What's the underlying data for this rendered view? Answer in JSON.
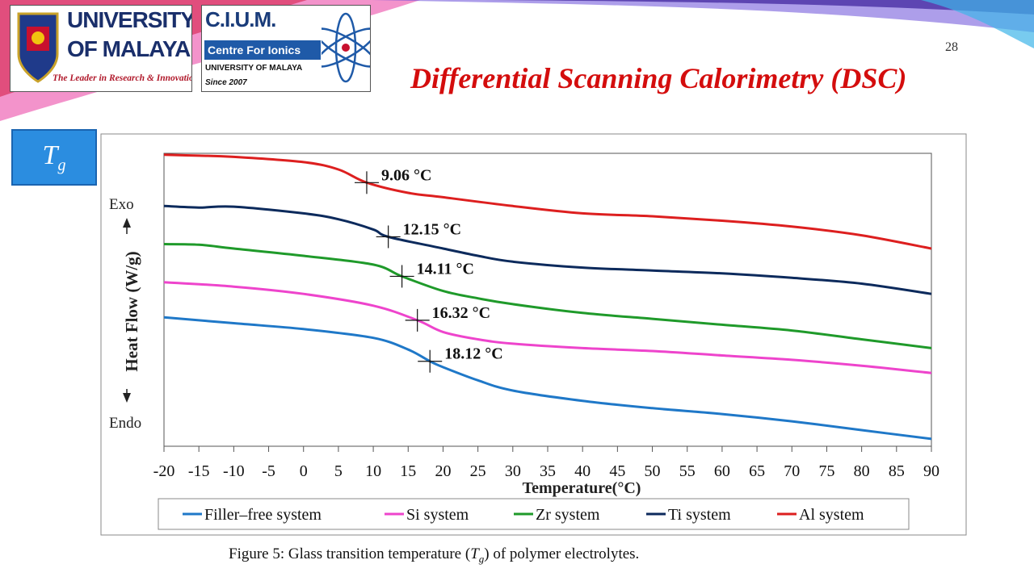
{
  "header": {
    "logo_um": {
      "line1": "UNIVERSITY",
      "line2": "OF MALAYA",
      "tagline": "The Leader in Research & Innovation"
    },
    "logo_cium": {
      "title": "C.I.U.M.",
      "subtitle": "Centre For Ionics",
      "line3": "UNIVERSITY OF MALAYA",
      "line4": "Since 2007"
    },
    "page_number": "28",
    "title": "Differential Scanning Calorimetry (DSC)"
  },
  "tg_badge": {
    "main": "T",
    "sub": "g"
  },
  "chart_data": {
    "type": "line",
    "xlabel": "Temperature(°C)",
    "ylabel": "Heat Flow (W/g)",
    "y_top_label": "Exo",
    "y_bottom_label": "Endo",
    "xlim": [
      -20,
      90
    ],
    "xticks": [
      -20,
      -15,
      -10,
      -5,
      0,
      5,
      10,
      15,
      20,
      25,
      30,
      35,
      40,
      45,
      50,
      55,
      60,
      65,
      70,
      75,
      80,
      85,
      90
    ],
    "ylim": [
      0,
      100
    ],
    "grid": false,
    "legend_position": "bottom",
    "colors": {
      "Filler–free system": "#1f78c8",
      "Si system": "#ee44cc",
      "Zr system": "#1f9a2a",
      "Ti system": "#0c2a5c",
      "Al system": "#dd1f1f"
    },
    "series": [
      {
        "name": "Filler–free system",
        "x": [
          -20,
          -10,
          0,
          10,
          15,
          18.12,
          20,
          25,
          30,
          40,
          50,
          60,
          70,
          80,
          90
        ],
        "y": [
          44,
          42,
          40,
          37,
          33,
          29,
          27,
          22.5,
          19,
          15.5,
          13,
          11,
          8.5,
          5.5,
          2.5
        ]
      },
      {
        "name": "Si system",
        "x": [
          -20,
          -10,
          0,
          10,
          16.32,
          20,
          25,
          30,
          40,
          50,
          60,
          70,
          80,
          90
        ],
        "y": [
          56,
          54.5,
          52,
          48,
          43,
          39,
          36.5,
          35,
          33.5,
          32.5,
          31,
          29.5,
          27.5,
          25
        ]
      },
      {
        "name": "Zr system",
        "x": [
          -20,
          -15,
          -10,
          0,
          10,
          14.11,
          20,
          25,
          30,
          40,
          50,
          60,
          70,
          80,
          90
        ],
        "y": [
          69,
          68.8,
          67.5,
          65,
          62,
          58,
          53,
          50.5,
          48.5,
          45.5,
          43.5,
          41.5,
          39.5,
          36.5,
          33.5
        ]
      },
      {
        "name": "Ti system",
        "x": [
          -20,
          -15,
          -10,
          0,
          5,
          10,
          12.15,
          20,
          25,
          30,
          40,
          50,
          60,
          70,
          80,
          90
        ],
        "y": [
          82,
          81.5,
          81.8,
          79.5,
          77.5,
          74,
          71.5,
          67.5,
          65,
          63,
          61,
          60,
          59,
          57.5,
          55.5,
          52
        ]
      },
      {
        "name": "Al system",
        "x": [
          -20,
          -15,
          -10,
          0,
          5,
          9.06,
          15,
          20,
          30,
          40,
          50,
          60,
          70,
          80,
          90
        ],
        "y": [
          99.5,
          99.2,
          98.8,
          97,
          94.5,
          90,
          86.5,
          85,
          82,
          79.5,
          78.5,
          77,
          75,
          72,
          67.5
        ]
      }
    ],
    "annotations": [
      {
        "series": "Al system",
        "x": 9.06,
        "label": "9.06 °C"
      },
      {
        "series": "Ti system",
        "x": 12.15,
        "label": "12.15 °C"
      },
      {
        "series": "Zr system",
        "x": 14.11,
        "label": "14.11 °C"
      },
      {
        "series": "Si system",
        "x": 16.32,
        "label": "16.32 °C"
      },
      {
        "series": "Filler–free system",
        "x": 18.12,
        "label": "18.12 °C"
      }
    ]
  },
  "caption": {
    "prefix": "Figure 5: Glass transition temperature (",
    "symbol": "T",
    "symbol_sub": "g",
    "suffix": ") of polymer electrolytes."
  }
}
